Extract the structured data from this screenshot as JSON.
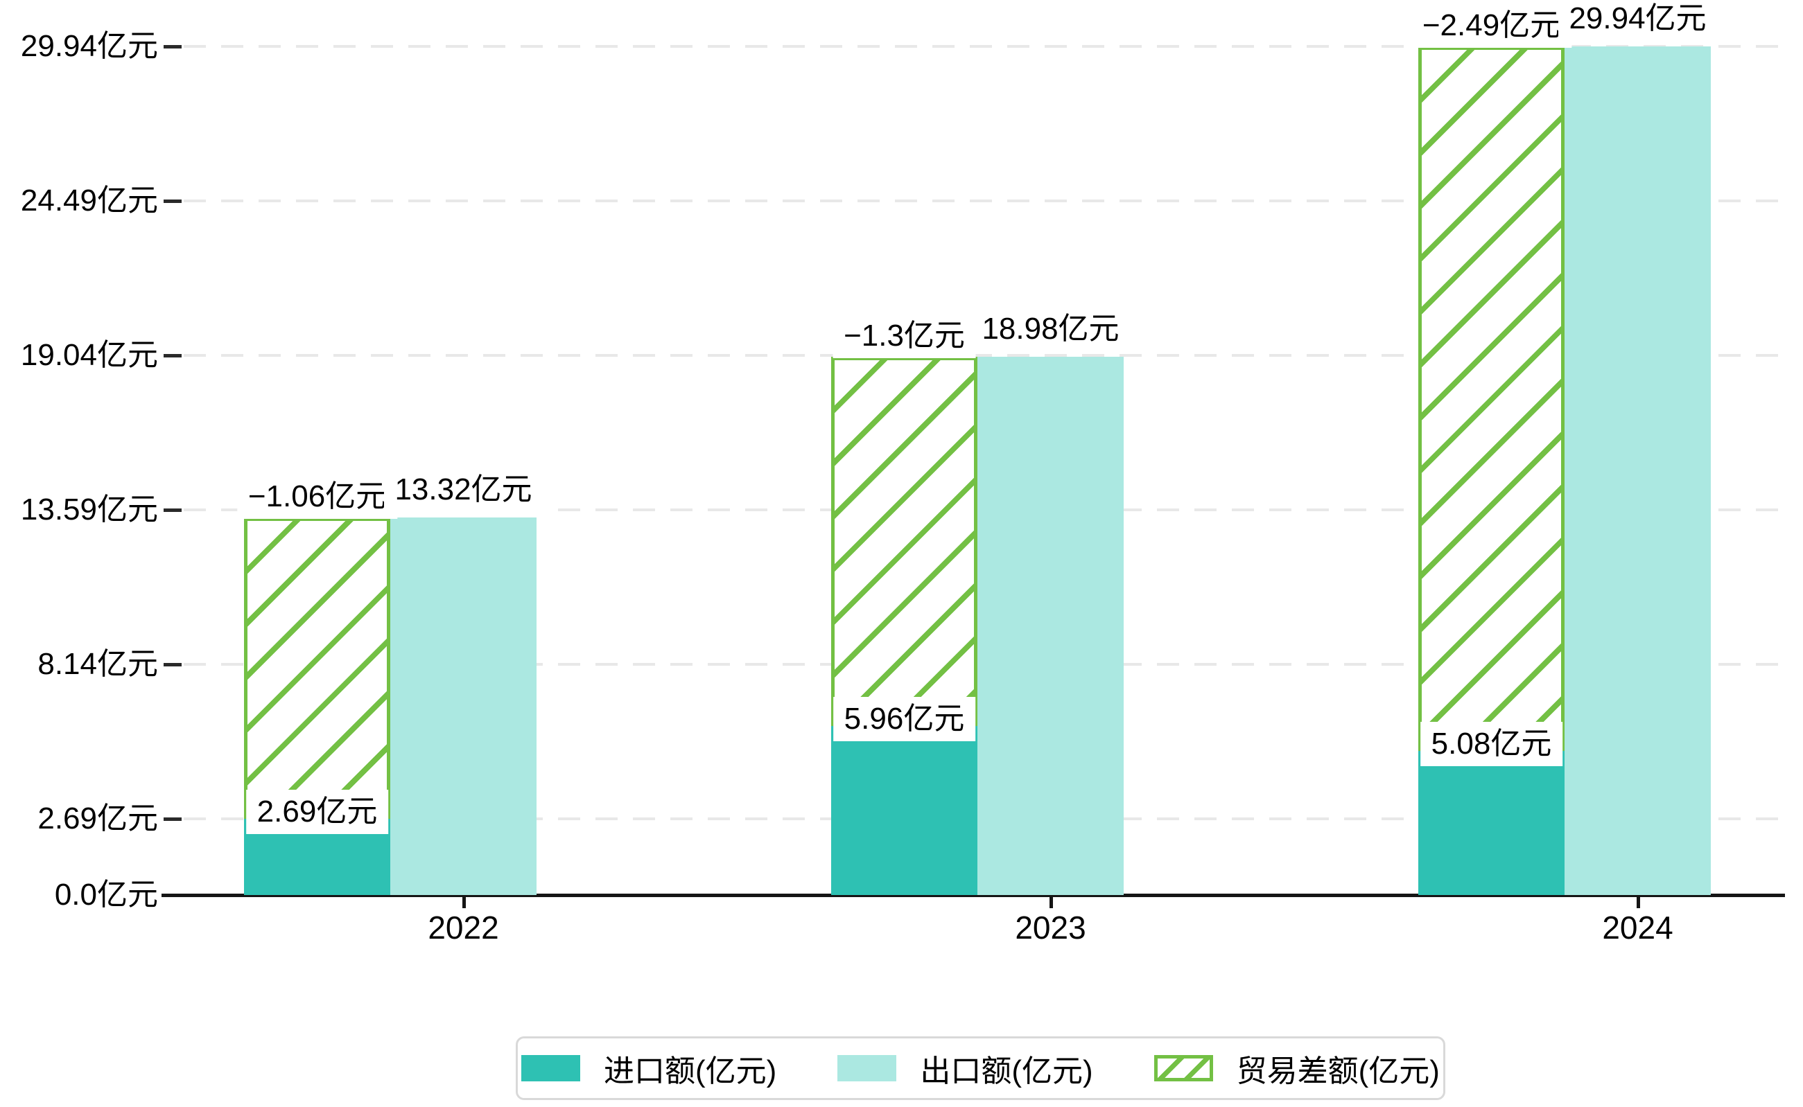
{
  "chart_data": {
    "type": "bar",
    "title": "",
    "categories": [
      "2022",
      "2023",
      "2024"
    ],
    "series": [
      {
        "name": "进口额(亿元)",
        "color": "#2ec1b3",
        "values": [
          2.69,
          5.96,
          5.08
        ],
        "labels": [
          "2.69亿元",
          "5.96亿元",
          "5.08亿元"
        ]
      },
      {
        "name": "出口额(亿元)",
        "color": "#abe8e1",
        "values": [
          13.32,
          18.98,
          29.94
        ],
        "labels": [
          "13.32亿元",
          "18.98亿元",
          "29.94亿元"
        ]
      },
      {
        "name": "贸易差额(亿元)",
        "color": "#73c044",
        "pattern": "diagonal-hatch",
        "values": [
          -1.06,
          -1.3,
          -2.49
        ],
        "labels": [
          "−1.06亿元",
          "−1.3亿元",
          "−2.49亿元"
        ]
      }
    ],
    "y_axis": {
      "unit": "亿元",
      "ticks": [
        {
          "value": 0.0,
          "label": "0.0亿元"
        },
        {
          "value": 2.69,
          "label": "2.69亿元"
        },
        {
          "value": 8.14,
          "label": "8.14亿元"
        },
        {
          "value": 13.59,
          "label": "13.59亿元"
        },
        {
          "value": 19.04,
          "label": "19.04亿元"
        },
        {
          "value": 24.49,
          "label": "24.49亿元"
        },
        {
          "value": 29.94,
          "label": "29.94亿元"
        }
      ],
      "ylim": [
        0,
        30.5
      ]
    },
    "grid": "horizontal-dashed",
    "legend_position": "bottom-center"
  },
  "legend": {
    "items": [
      {
        "label": "进口额(亿元)",
        "swatch": "solid-teal"
      },
      {
        "label": "出口额(亿元)",
        "swatch": "solid-light-teal"
      },
      {
        "label": "贸易差额(亿元)",
        "swatch": "green-hatched"
      }
    ]
  },
  "colors": {
    "import": "#2ec1b3",
    "export": "#abe8e1",
    "trade_hatch": "#73c044",
    "axis": "#151515",
    "grid": "#e8e8e8"
  }
}
